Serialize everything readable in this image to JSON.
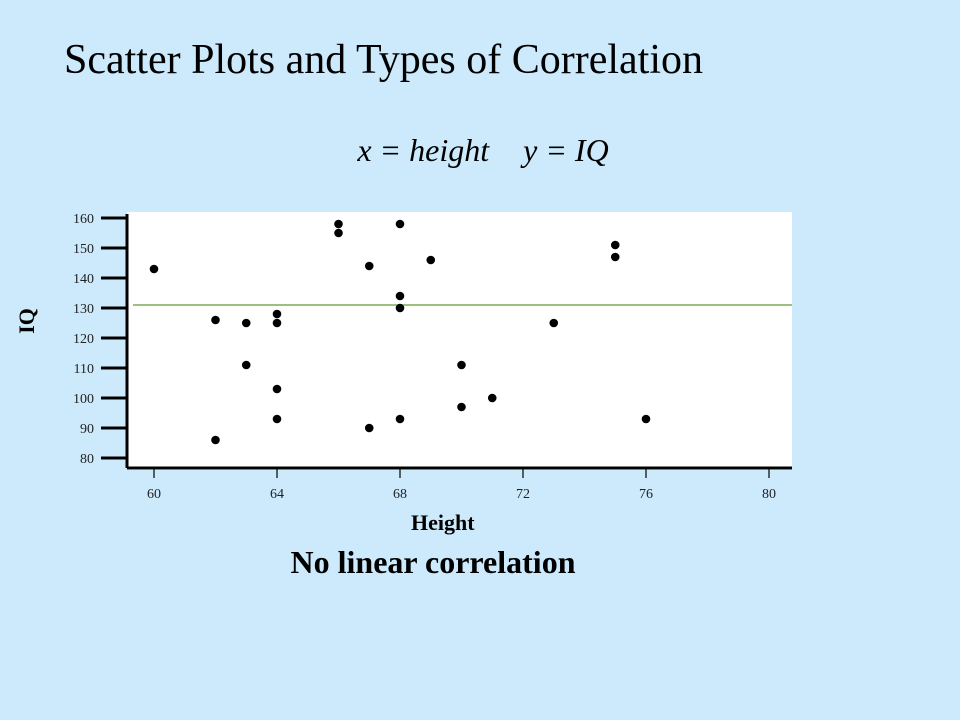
{
  "slide": {
    "title": "Scatter Plots and Types of Correlation",
    "subtitle_x": "x = height",
    "subtitle_y": "y = IQ",
    "caption": "No linear correlation"
  },
  "colors": {
    "background": "#cdeafc",
    "plot_area": "#ffffff",
    "points": "#000000",
    "reference_line": "#7aab55"
  },
  "chart_data": {
    "type": "scatter",
    "title": "",
    "xlabel": "Height",
    "ylabel": "IQ",
    "xlim": [
      59,
      80.5
    ],
    "ylim": [
      77,
      162
    ],
    "x_ticks": [
      60,
      64,
      68,
      72,
      76,
      80
    ],
    "y_ticks": [
      80,
      90,
      100,
      110,
      120,
      130,
      140,
      150,
      160
    ],
    "reference_line_y": 131,
    "grid": false,
    "series": [
      {
        "points": [
          [
            60,
            143
          ],
          [
            62,
            126
          ],
          [
            62,
            86
          ],
          [
            63,
            125
          ],
          [
            63,
            111
          ],
          [
            64,
            128
          ],
          [
            64,
            125
          ],
          [
            64,
            103
          ],
          [
            64,
            93
          ],
          [
            66,
            158
          ],
          [
            66,
            155
          ],
          [
            67,
            144
          ],
          [
            67,
            90
          ],
          [
            68,
            158
          ],
          [
            68,
            134
          ],
          [
            68,
            130
          ],
          [
            68,
            93
          ],
          [
            69,
            146
          ],
          [
            70,
            111
          ],
          [
            70,
            97
          ],
          [
            71,
            100
          ],
          [
            73,
            125
          ],
          [
            75,
            151
          ],
          [
            75,
            147
          ],
          [
            76,
            93
          ]
        ]
      }
    ]
  }
}
